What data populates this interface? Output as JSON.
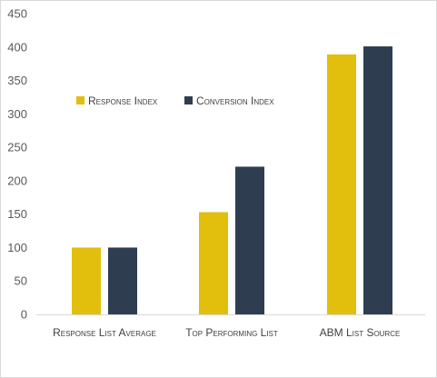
{
  "chart_data": {
    "type": "bar",
    "categories": [
      "Response List Average",
      "Top Performing List",
      "ABM List Source"
    ],
    "series": [
      {
        "name": "Response Index",
        "color": "#e2bf0c",
        "values": [
          100,
          153,
          389
        ]
      },
      {
        "name": "Conversion Index",
        "color": "#2e3e50",
        "values": [
          100,
          221,
          401
        ]
      }
    ],
    "ylim": [
      0,
      450
    ],
    "yticks": [
      0,
      50,
      100,
      150,
      200,
      250,
      300,
      350,
      400,
      450
    ],
    "grid": false,
    "legend": "top-left",
    "title": "",
    "xlabel": "",
    "ylabel": ""
  }
}
